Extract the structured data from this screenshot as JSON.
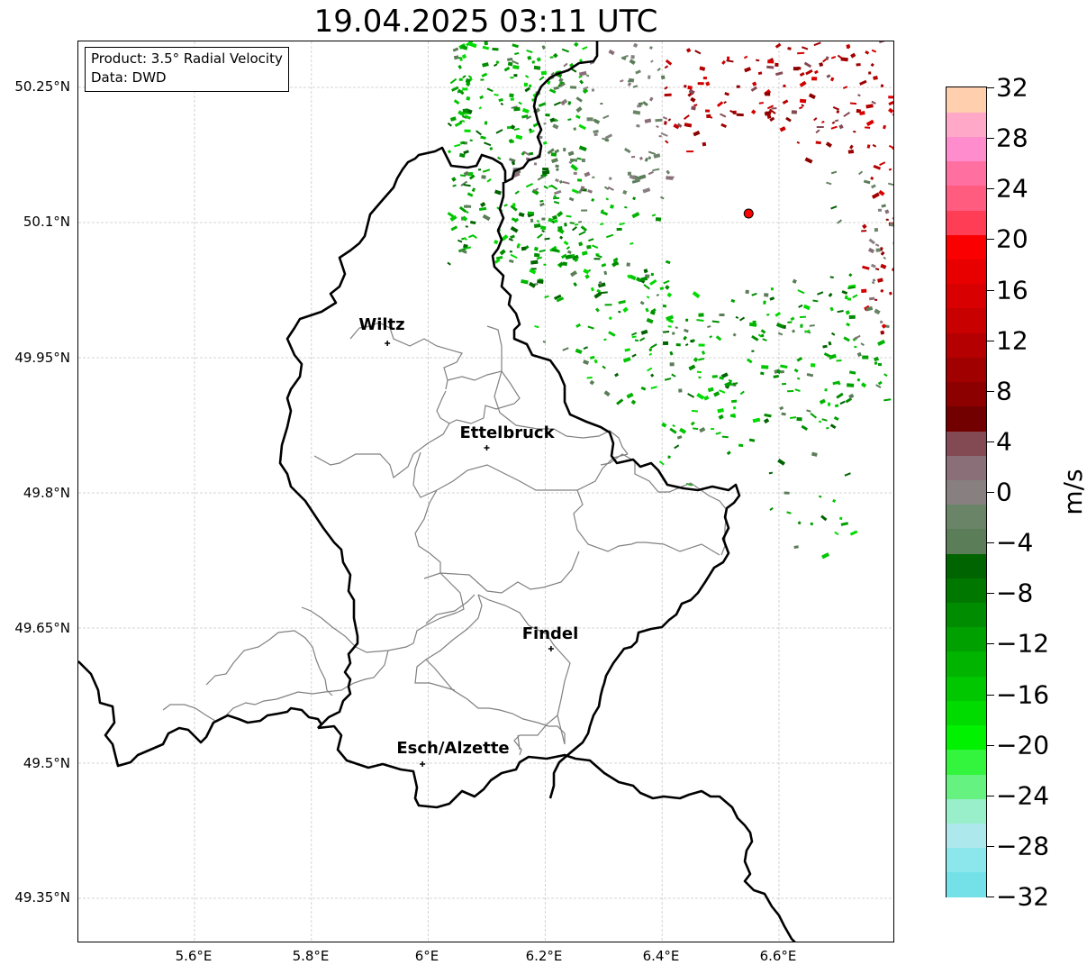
{
  "title": "19.04.2025 03:11 UTC",
  "info": {
    "product": "Product: 3.5° Radial Velocity",
    "source": "Data: DWD"
  },
  "axes": {
    "lat_ticks": [
      "50.25°N",
      "50.1°N",
      "49.95°N",
      "49.8°N",
      "49.65°N",
      "49.5°N",
      "49.35°N"
    ],
    "lon_ticks": [
      "5.6°E",
      "5.8°E",
      "6°E",
      "6.2°E",
      "6.4°E",
      "6.6°E"
    ]
  },
  "cities": [
    {
      "name": "Wiltz",
      "lon": 5.93,
      "lat": 49.966
    },
    {
      "name": "Ettelbruck",
      "lon": 6.1,
      "lat": 49.85
    },
    {
      "name": "Findel",
      "lon": 6.21,
      "lat": 49.627
    },
    {
      "name": "Esch/Alzette",
      "lon": 5.99,
      "lat": 49.499
    }
  ],
  "radar_site": {
    "lon": 6.548,
    "lat": 50.11,
    "color": "#ff0000"
  },
  "colorbar": {
    "unit": "m/s",
    "min": -32,
    "max": 32,
    "tick_labels": [
      "32",
      "28",
      "24",
      "20",
      "16",
      "12",
      "8",
      "4",
      "0",
      "−4",
      "−8",
      "−12",
      "−16",
      "−20",
      "−24",
      "−28",
      "−32"
    ],
    "colors": [
      "#74e1e8",
      "#8ce7ec",
      "#ade9ec",
      "#99efca",
      "#66f280",
      "#33f53d",
      "#00f200",
      "#00db00",
      "#00c700",
      "#00b400",
      "#00a000",
      "#008c00",
      "#007800",
      "#006400",
      "#5b7d58",
      "#6a8468",
      "#888080",
      "#8a6e78",
      "#844a54",
      "#730000",
      "#8c0000",
      "#a00000",
      "#b40000",
      "#c80000",
      "#d80000",
      "#e80000",
      "#fa0000",
      "#ff3d55",
      "#ff5c80",
      "#ff70a0",
      "#ff8ccc",
      "#ffa8c8",
      "#ffcfae"
    ]
  }
}
